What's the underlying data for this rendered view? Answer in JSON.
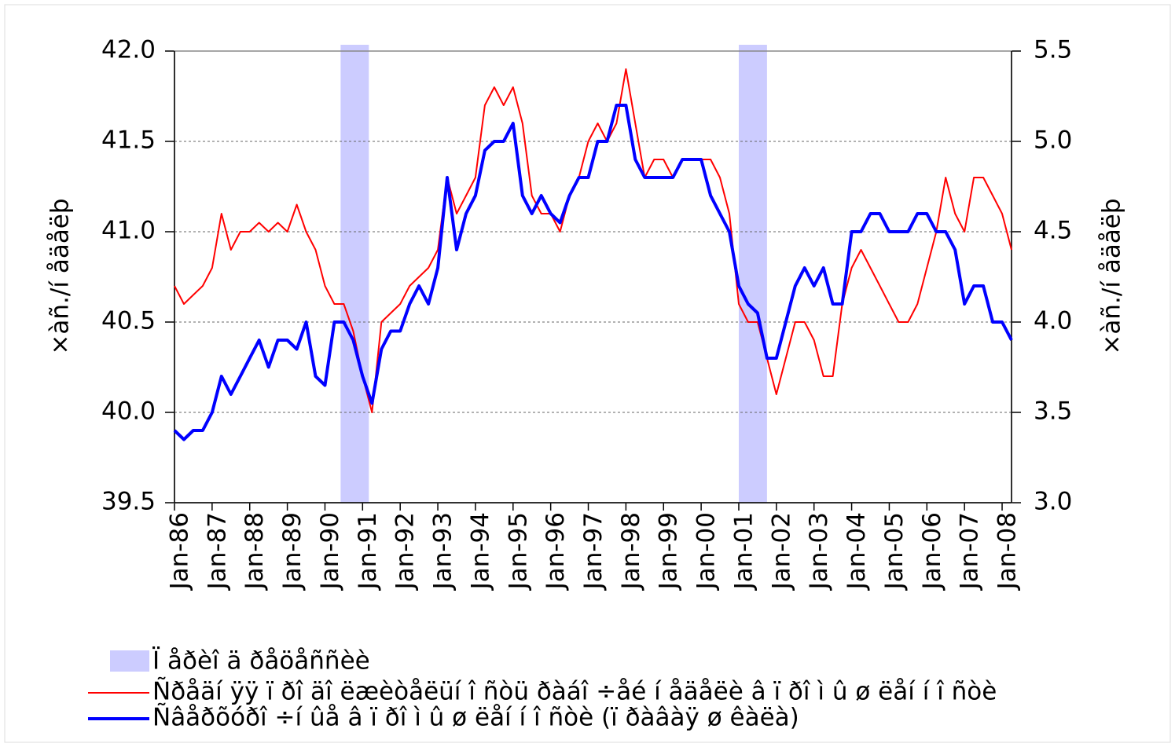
{
  "chart_data": {
    "type": "line",
    "y_label": "×àñ./í åäåëþ",
    "y2_label": "×àñ./í åäåëþ",
    "xlim": [
      "1986-01",
      "2008-04"
    ],
    "xticks": [
      {
        "value": "1986-01",
        "label": "Jan-86"
      },
      {
        "value": "1987-01",
        "label": "Jan-87"
      },
      {
        "value": "1988-01",
        "label": "Jan-88"
      },
      {
        "value": "1989-01",
        "label": "Jan-89"
      },
      {
        "value": "1990-01",
        "label": "Jan-90"
      },
      {
        "value": "1991-01",
        "label": "Jan-91"
      },
      {
        "value": "1992-01",
        "label": "Jan-92"
      },
      {
        "value": "1993-01",
        "label": "Jan-93"
      },
      {
        "value": "1994-01",
        "label": "Jan-94"
      },
      {
        "value": "1995-01",
        "label": "Jan-95"
      },
      {
        "value": "1996-01",
        "label": "Jan-96"
      },
      {
        "value": "1997-01",
        "label": "Jan-97"
      },
      {
        "value": "1998-01",
        "label": "Jan-98"
      },
      {
        "value": "1999-01",
        "label": "Jan-99"
      },
      {
        "value": "2000-01",
        "label": "Jan-00"
      },
      {
        "value": "2001-01",
        "label": "Jan-01"
      },
      {
        "value": "2002-01",
        "label": "Jan-02"
      },
      {
        "value": "2003-01",
        "label": "Jan-03"
      },
      {
        "value": "2004-01",
        "label": "Jan-04"
      },
      {
        "value": "2005-01",
        "label": "Jan-05"
      },
      {
        "value": "2006-01",
        "label": "Jan-06"
      },
      {
        "value": "2007-01",
        "label": "Jan-07"
      },
      {
        "value": "2008-01",
        "label": "Jan-08"
      }
    ],
    "ylim": [
      39.5,
      42.0
    ],
    "yticks": [
      39.5,
      {
        "value": 40.0,
        "label": "40.0"
      },
      40.5,
      {
        "value": 41.0,
        "label": "41.0"
      },
      41.5,
      {
        "value": 42.0,
        "label": "42.0"
      }
    ],
    "y2lim": [
      3.0,
      5.5
    ],
    "y2ticks": [
      {
        "value": 3.0,
        "label": "3.0"
      },
      3.5,
      {
        "value": 4.0,
        "label": "4.0"
      },
      4.5,
      {
        "value": 5.0,
        "label": "5.0"
      },
      5.5
    ],
    "grid": true,
    "shaded_regions": {
      "name": "Ï åðèî ä ðåöåññèè",
      "color": "#ccccff",
      "ranges": [
        [
          "1990-06",
          "1991-03"
        ],
        [
          "2001-01",
          "2001-10"
        ]
      ]
    },
    "x": [
      "1986-01",
      "1986-04",
      "1986-07",
      "1986-10",
      "1987-01",
      "1987-04",
      "1987-07",
      "1987-10",
      "1988-01",
      "1988-04",
      "1988-07",
      "1988-10",
      "1989-01",
      "1989-04",
      "1989-07",
      "1989-10",
      "1990-01",
      "1990-04",
      "1990-07",
      "1990-10",
      "1991-01",
      "1991-04",
      "1991-07",
      "1991-10",
      "1992-01",
      "1992-04",
      "1992-07",
      "1992-10",
      "1993-01",
      "1993-04",
      "1993-07",
      "1993-10",
      "1994-01",
      "1994-04",
      "1994-07",
      "1994-10",
      "1995-01",
      "1995-04",
      "1995-07",
      "1995-10",
      "1996-01",
      "1996-04",
      "1996-07",
      "1996-10",
      "1997-01",
      "1997-04",
      "1997-07",
      "1997-10",
      "1998-01",
      "1998-04",
      "1998-07",
      "1998-10",
      "1999-01",
      "1999-04",
      "1999-07",
      "1999-10",
      "2000-01",
      "2000-04",
      "2000-07",
      "2000-10",
      "2001-01",
      "2001-04",
      "2001-07",
      "2001-10",
      "2002-01",
      "2002-04",
      "2002-07",
      "2002-10",
      "2003-01",
      "2003-04",
      "2003-07",
      "2003-10",
      "2004-01",
      "2004-04",
      "2004-07",
      "2004-10",
      "2005-01",
      "2005-04",
      "2005-07",
      "2005-10",
      "2006-01",
      "2006-04",
      "2006-07",
      "2006-10",
      "2007-01",
      "2007-04",
      "2007-07",
      "2007-10",
      "2008-01",
      "2008-04"
    ],
    "series": [
      {
        "name": "Ñðåäí ÿÿ ï ðî äî ëæèòåëüí î ñòü ðàáî ÷åé í åäåëè â ï ðî ì û ø ëåí í î ñòè",
        "color": "#ff0000",
        "width": 2,
        "values": [
          40.7,
          40.6,
          40.65,
          40.7,
          40.8,
          41.1,
          40.9,
          41.0,
          41.0,
          41.05,
          41.0,
          41.05,
          41.0,
          41.15,
          41.0,
          40.9,
          40.7,
          40.6,
          40.6,
          40.45,
          40.2,
          40.0,
          40.5,
          40.55,
          40.6,
          40.7,
          40.75,
          40.8,
          40.9,
          41.3,
          41.1,
          41.2,
          41.3,
          41.7,
          41.8,
          41.7,
          41.8,
          41.6,
          41.2,
          41.1,
          41.1,
          41.0,
          41.2,
          41.3,
          41.5,
          41.6,
          41.5,
          41.6,
          41.9,
          41.6,
          41.3,
          41.4,
          41.4,
          41.3,
          41.4,
          41.4,
          41.4,
          41.4,
          41.3,
          41.1,
          40.6,
          40.5,
          40.5,
          40.3,
          40.1,
          40.3,
          40.5,
          40.5,
          40.4,
          40.2,
          40.2,
          40.6,
          40.8,
          40.9,
          40.8,
          40.7,
          40.6,
          40.5,
          40.5,
          40.6,
          40.8,
          41.0,
          41.3,
          41.1,
          41.0,
          41.3,
          41.3,
          41.2,
          41.1,
          40.9
        ]
      },
      {
        "name": "Ñâåðõóðî ÷í ûå â ï ðî ì û ø ëåí í î ñòè (ï ðàâàÿ ø êàëà)",
        "color": "#0000ff",
        "width": 4,
        "axis": "y2",
        "values": [
          3.4,
          3.35,
          3.4,
          3.4,
          3.5,
          3.7,
          3.6,
          3.7,
          3.8,
          3.9,
          3.75,
          3.9,
          3.9,
          3.85,
          4.0,
          3.7,
          3.65,
          4.0,
          4.0,
          3.9,
          3.7,
          3.55,
          3.85,
          3.95,
          3.95,
          4.1,
          4.2,
          4.1,
          4.3,
          4.8,
          4.4,
          4.6,
          4.7,
          4.95,
          5.0,
          5.0,
          5.1,
          4.7,
          4.6,
          4.7,
          4.6,
          4.55,
          4.7,
          4.8,
          4.8,
          5.0,
          5.0,
          5.2,
          5.2,
          4.9,
          4.8,
          4.8,
          4.8,
          4.8,
          4.9,
          4.9,
          4.9,
          4.7,
          4.6,
          4.5,
          4.2,
          4.1,
          4.05,
          3.8,
          3.8,
          4.0,
          4.2,
          4.3,
          4.2,
          4.3,
          4.1,
          4.1,
          4.5,
          4.5,
          4.6,
          4.6,
          4.5,
          4.5,
          4.5,
          4.6,
          4.6,
          4.5,
          4.5,
          4.4,
          4.1,
          4.2,
          4.2,
          4.0,
          4.0,
          3.9
        ]
      }
    ]
  }
}
